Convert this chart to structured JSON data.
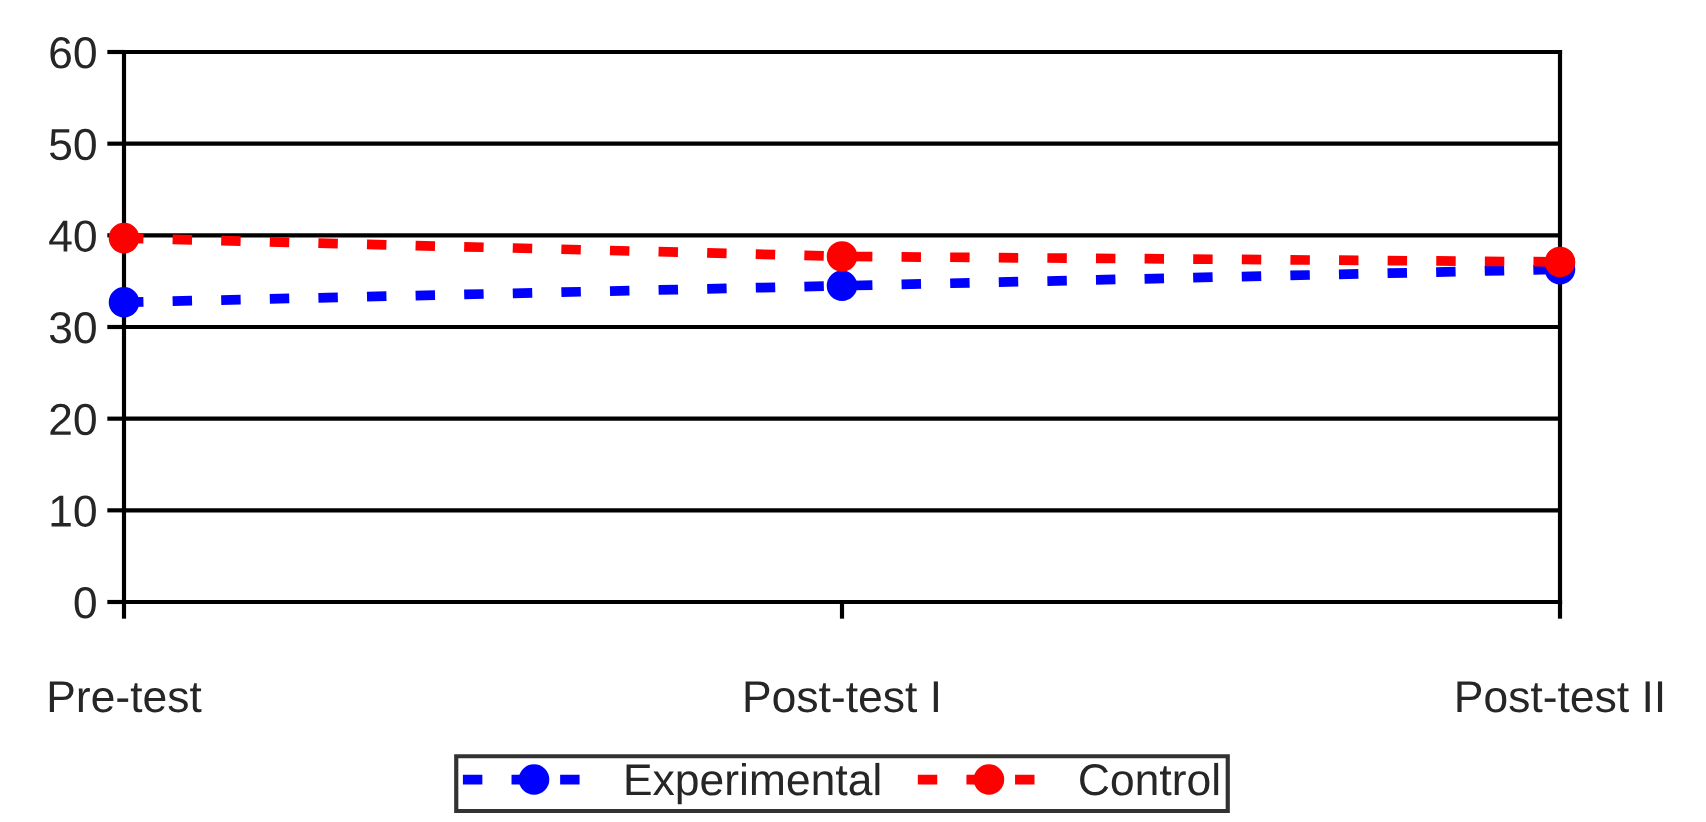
{
  "chart_data": {
    "type": "line",
    "categories": [
      "Pre-test",
      "Post-test I",
      "Post-test II"
    ],
    "series": [
      {
        "name": "Experimental",
        "color": "#0000ff",
        "values": [
          32.7,
          34.5,
          36.3
        ]
      },
      {
        "name": "Control",
        "color": "#ff0000",
        "values": [
          39.7,
          37.7,
          37.1
        ]
      }
    ],
    "ylim": [
      0,
      60
    ],
    "yticks": [
      0,
      10,
      20,
      30,
      40,
      50,
      60
    ],
    "grid": "y",
    "legend": "bottom",
    "marker": "circle",
    "line_style": "dashed"
  }
}
